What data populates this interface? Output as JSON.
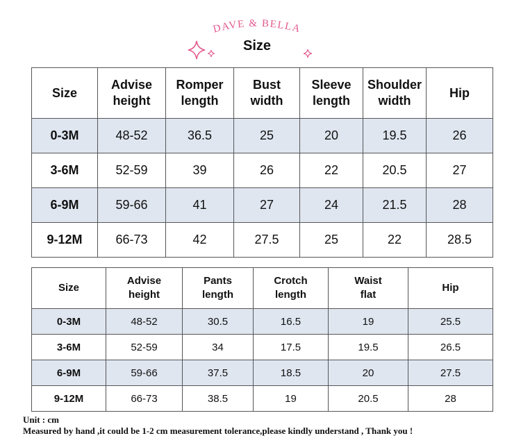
{
  "brand": {
    "text": "DAVE & BELLA",
    "color": "#e35a8e"
  },
  "title": "Size",
  "table1": {
    "headers": [
      "Size",
      "Advise\nheight",
      "Romper\nlength",
      "Bust\nwidth",
      "Sleeve\nlength",
      "Shoulder\nwidth",
      "Hip"
    ],
    "rows": [
      [
        "0-3M",
        "48-52",
        "36.5",
        "25",
        "20",
        "19.5",
        "26"
      ],
      [
        "3-6M",
        "52-59",
        "39",
        "26",
        "22",
        "20.5",
        "27"
      ],
      [
        "6-9M",
        "59-66",
        "41",
        "27",
        "24",
        "21.5",
        "28"
      ],
      [
        "9-12M",
        "66-73",
        "42",
        "27.5",
        "25",
        "22",
        "28.5"
      ]
    ]
  },
  "table2": {
    "headers": [
      "Size",
      "Advise\nheight",
      "Pants\nlength",
      "Crotch\nlength",
      "Waist\nflat",
      "Hip"
    ],
    "rows": [
      [
        "0-3M",
        "48-52",
        "30.5",
        "16.5",
        "19",
        "25.5"
      ],
      [
        "3-6M",
        "52-59",
        "34",
        "17.5",
        "19.5",
        "26.5"
      ],
      [
        "6-9M",
        "59-66",
        "37.5",
        "18.5",
        "20",
        "27.5"
      ],
      [
        "9-12M",
        "66-73",
        "38.5",
        "19",
        "20.5",
        "28"
      ]
    ]
  },
  "notes": {
    "unit": "Unit : cm",
    "measure": "Measured by hand ,it could be 1-2 cm measurement tolerance,please kindly understand , Thank you !"
  },
  "colors": {
    "row_shade": "#dfe6f0",
    "accent_pink": "#e35a8e",
    "border": "#555555"
  }
}
